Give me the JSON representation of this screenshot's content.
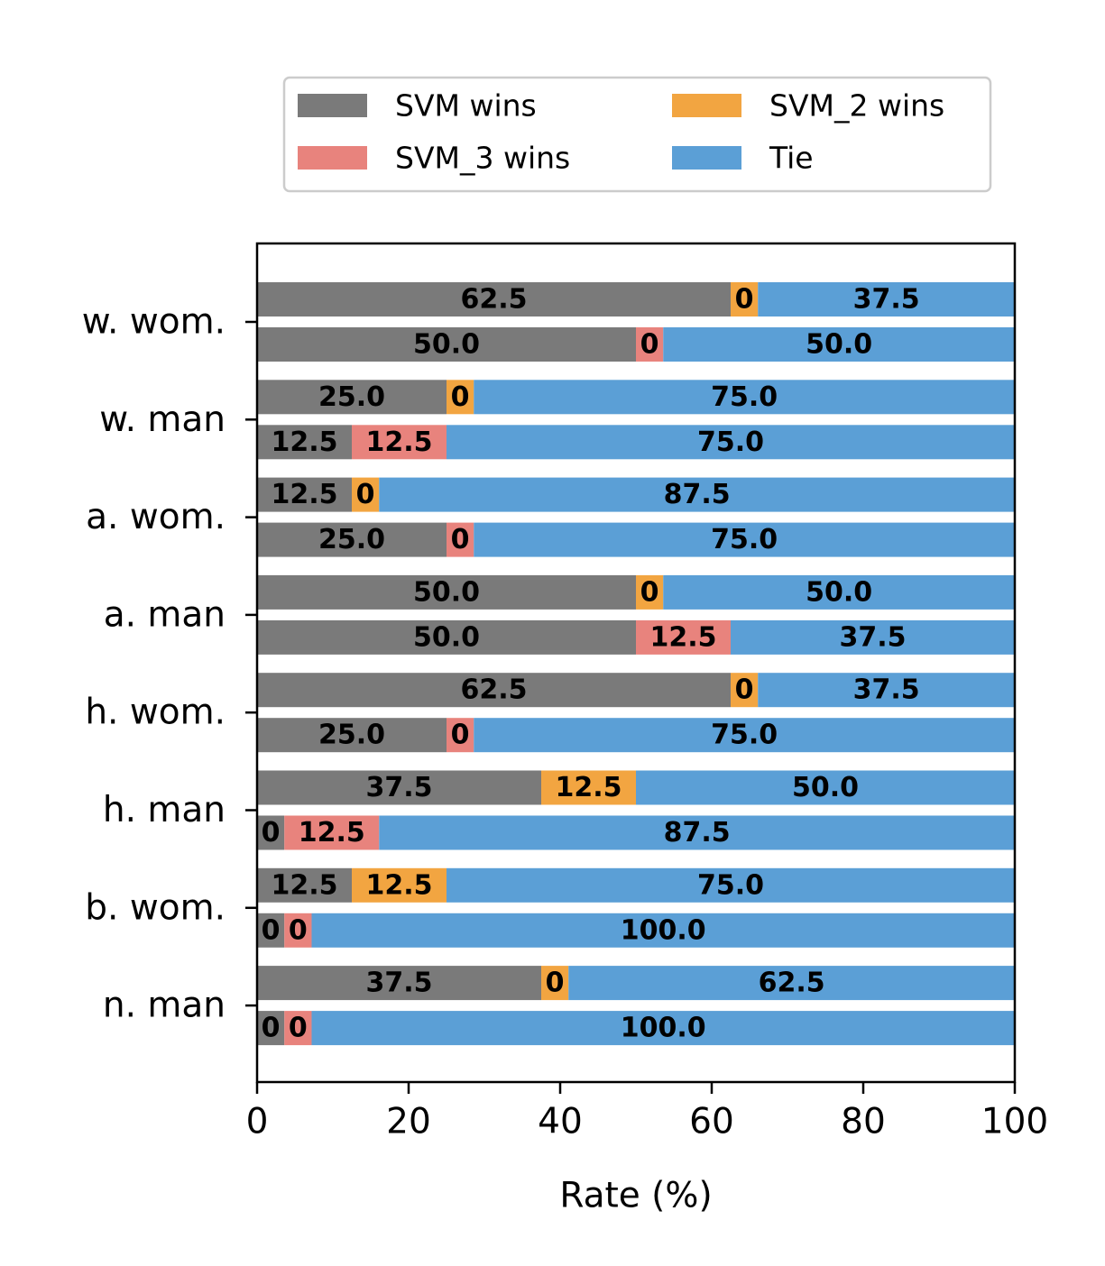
{
  "chart_data": {
    "type": "bar",
    "orientation": "horizontal",
    "stacked": true,
    "title": "",
    "xlabel": "Rate (%)",
    "ylabel": "",
    "xlim": [
      0,
      100
    ],
    "xticks": [
      "0",
      "20",
      "40",
      "60",
      "80",
      "100"
    ],
    "grid": false,
    "legend_position": "top",
    "legend": [
      {
        "name": "SVM wins",
        "color": "#7a7a7a"
      },
      {
        "name": "SVM_3 wins",
        "color": "#e8837d"
      },
      {
        "name": "SVM_2 wins",
        "color": "#f2a541"
      },
      {
        "name": "Tie",
        "color": "#5b9fd6"
      }
    ],
    "categories": [
      "w. wom.",
      "w. man",
      "a. wom.",
      "a. man",
      "h. wom.",
      "h. man",
      "b. wom.",
      "n. man"
    ],
    "bars": [
      {
        "category": "w. wom.",
        "position": "upper",
        "segments": [
          {
            "series": "SVM wins",
            "value": 62.5,
            "label": "62.5"
          },
          {
            "series": "SVM_2 wins",
            "value": 0,
            "label": "0"
          },
          {
            "series": "Tie",
            "value": 37.5,
            "label": "37.5"
          }
        ]
      },
      {
        "category": "w. wom.",
        "position": "lower",
        "segments": [
          {
            "series": "SVM wins",
            "value": 50.0,
            "label": "50.0"
          },
          {
            "series": "SVM_3 wins",
            "value": 0,
            "label": "0"
          },
          {
            "series": "Tie",
            "value": 50.0,
            "label": "50.0"
          }
        ]
      },
      {
        "category": "w. man",
        "position": "upper",
        "segments": [
          {
            "series": "SVM wins",
            "value": 25.0,
            "label": "25.0"
          },
          {
            "series": "SVM_2 wins",
            "value": 0,
            "label": "0"
          },
          {
            "series": "Tie",
            "value": 75.0,
            "label": "75.0"
          }
        ]
      },
      {
        "category": "w. man",
        "position": "lower",
        "segments": [
          {
            "series": "SVM wins",
            "value": 12.5,
            "label": "12.5"
          },
          {
            "series": "SVM_3 wins",
            "value": 12.5,
            "label": "12.5"
          },
          {
            "series": "Tie",
            "value": 75.0,
            "label": "75.0"
          }
        ]
      },
      {
        "category": "a. wom.",
        "position": "upper",
        "segments": [
          {
            "series": "SVM wins",
            "value": 12.5,
            "label": "12.5"
          },
          {
            "series": "SVM_2 wins",
            "value": 0,
            "label": "0"
          },
          {
            "series": "Tie",
            "value": 87.5,
            "label": "87.5"
          }
        ]
      },
      {
        "category": "a. wom.",
        "position": "lower",
        "segments": [
          {
            "series": "SVM wins",
            "value": 25.0,
            "label": "25.0"
          },
          {
            "series": "SVM_3 wins",
            "value": 0,
            "label": "0"
          },
          {
            "series": "Tie",
            "value": 75.0,
            "label": "75.0"
          }
        ]
      },
      {
        "category": "a. man",
        "position": "upper",
        "segments": [
          {
            "series": "SVM wins",
            "value": 50.0,
            "label": "50.0"
          },
          {
            "series": "SVM_2 wins",
            "value": 0,
            "label": "0"
          },
          {
            "series": "Tie",
            "value": 50.0,
            "label": "50.0"
          }
        ]
      },
      {
        "category": "a. man",
        "position": "lower",
        "segments": [
          {
            "series": "SVM wins",
            "value": 50.0,
            "label": "50.0"
          },
          {
            "series": "SVM_3 wins",
            "value": 12.5,
            "label": "12.5"
          },
          {
            "series": "Tie",
            "value": 37.5,
            "label": "37.5"
          }
        ]
      },
      {
        "category": "h. wom.",
        "position": "upper",
        "segments": [
          {
            "series": "SVM wins",
            "value": 62.5,
            "label": "62.5"
          },
          {
            "series": "SVM_2 wins",
            "value": 0,
            "label": "0"
          },
          {
            "series": "Tie",
            "value": 37.5,
            "label": "37.5"
          }
        ]
      },
      {
        "category": "h. wom.",
        "position": "lower",
        "segments": [
          {
            "series": "SVM wins",
            "value": 25.0,
            "label": "25.0"
          },
          {
            "series": "SVM_3 wins",
            "value": 0,
            "label": "0"
          },
          {
            "series": "Tie",
            "value": 75.0,
            "label": "75.0"
          }
        ]
      },
      {
        "category": "h. man",
        "position": "upper",
        "segments": [
          {
            "series": "SVM wins",
            "value": 37.5,
            "label": "37.5"
          },
          {
            "series": "SVM_2 wins",
            "value": 12.5,
            "label": "12.5"
          },
          {
            "series": "Tie",
            "value": 50.0,
            "label": "50.0"
          }
        ]
      },
      {
        "category": "h. man",
        "position": "lower",
        "segments": [
          {
            "series": "SVM wins",
            "value": 0,
            "label": "0"
          },
          {
            "series": "SVM_3 wins",
            "value": 12.5,
            "label": "12.5"
          },
          {
            "series": "Tie",
            "value": 87.5,
            "label": "87.5"
          }
        ]
      },
      {
        "category": "b. wom.",
        "position": "upper",
        "segments": [
          {
            "series": "SVM wins",
            "value": 12.5,
            "label": "12.5"
          },
          {
            "series": "SVM_2 wins",
            "value": 12.5,
            "label": "12.5"
          },
          {
            "series": "Tie",
            "value": 75.0,
            "label": "75.0"
          }
        ]
      },
      {
        "category": "b. wom.",
        "position": "lower",
        "segments": [
          {
            "series": "SVM wins",
            "value": 0,
            "label": "0"
          },
          {
            "series": "SVM_3 wins",
            "value": 0,
            "label": "0"
          },
          {
            "series": "Tie",
            "value": 100.0,
            "label": "100.0"
          }
        ]
      },
      {
        "category": "n. man",
        "position": "upper",
        "segments": [
          {
            "series": "SVM wins",
            "value": 37.5,
            "label": "37.5"
          },
          {
            "series": "SVM_2 wins",
            "value": 0,
            "label": "0"
          },
          {
            "series": "Tie",
            "value": 62.5,
            "label": "62.5"
          }
        ]
      },
      {
        "category": "n. man",
        "position": "lower",
        "segments": [
          {
            "series": "SVM wins",
            "value": 0,
            "label": "0"
          },
          {
            "series": "SVM_3 wins",
            "value": 0,
            "label": "0"
          },
          {
            "series": "Tie",
            "value": 100.0,
            "label": "100.0"
          }
        ]
      }
    ]
  }
}
